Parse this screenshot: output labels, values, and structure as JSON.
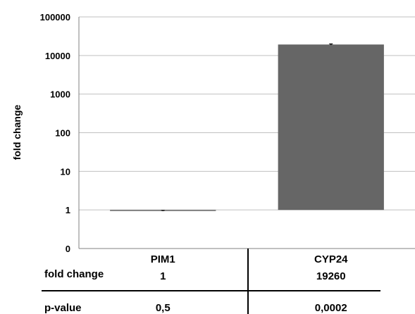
{
  "chart_data": {
    "type": "bar",
    "scale": "log",
    "categories": [
      "PIM1",
      "CYP24"
    ],
    "values": [
      0.95,
      19260
    ],
    "error": [
      0.02,
      700
    ],
    "ylim": [
      0.1,
      100000
    ],
    "yticks": [
      {
        "value": 0.1,
        "label": "0"
      },
      {
        "value": 1,
        "label": "1"
      },
      {
        "value": 10,
        "label": "10"
      },
      {
        "value": 100,
        "label": "100"
      },
      {
        "value": 1000,
        "label": "1000"
      },
      {
        "value": 10000,
        "label": "10000"
      },
      {
        "value": 100000,
        "label": "100000"
      }
    ],
    "ylabel": "fold change",
    "xlabel": "",
    "title": "",
    "grid": true,
    "bar_color": "#666666",
    "grid_color": "#c0c0c0"
  },
  "table": {
    "rows": [
      {
        "label": "fold change",
        "values": [
          "1",
          "19260"
        ]
      },
      {
        "label": "p-value",
        "values": [
          "0,5",
          "0,0002"
        ]
      }
    ]
  }
}
